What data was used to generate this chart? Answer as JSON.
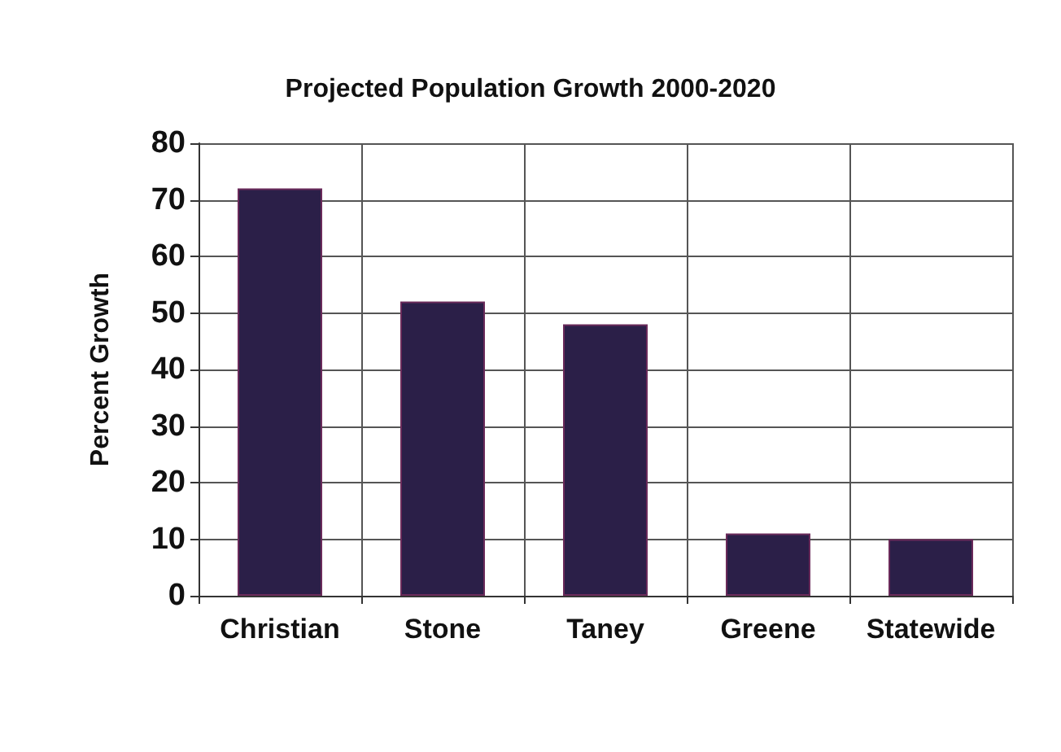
{
  "chart_data": {
    "type": "bar",
    "title": "Projected Population Growth 2000-2020",
    "ylabel": "Percent Growth",
    "categories": [
      "Christian",
      "Stone",
      "Taney",
      "Greene",
      "Statewide"
    ],
    "values": [
      72,
      52,
      48,
      11,
      10
    ],
    "color": "#2b1f48",
    "ylim": [
      0,
      80
    ],
    "yticks": [
      0,
      10,
      20,
      30,
      40,
      50,
      60,
      70,
      80
    ],
    "grid": true
  }
}
